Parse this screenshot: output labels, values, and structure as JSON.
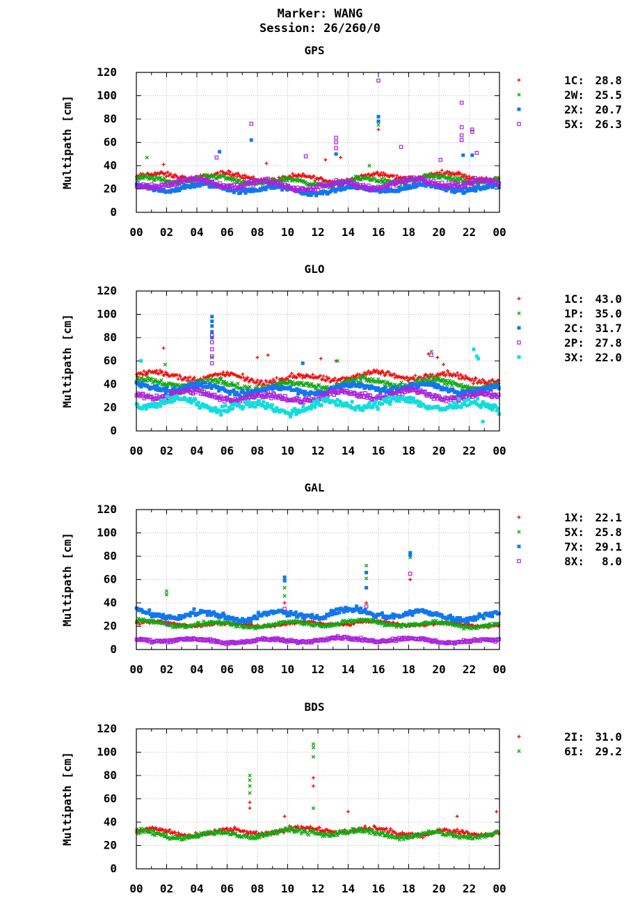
{
  "header": {
    "marker": "Marker: WANG",
    "session": "Session: 26/260/0"
  },
  "colors": {
    "red": "#ee1111",
    "green": "#11aa11",
    "blue": "#1177ee",
    "purple": "#aa22dd",
    "cyan": "#11dddd",
    "grid": "#aaaaaa"
  },
  "chart_data": [
    {
      "type": "scatter",
      "title": "GPS",
      "ylabel": "Multipath [cm]",
      "ylim": [
        0,
        120
      ],
      "yticks": [
        "0",
        "20",
        "40",
        "60",
        "80",
        "100",
        "120"
      ],
      "xlim": [
        0,
        24
      ],
      "xticks": [
        "00",
        "02",
        "04",
        "06",
        "08",
        "10",
        "12",
        "14",
        "16",
        "18",
        "20",
        "22",
        "00"
      ],
      "grid": true,
      "legend_position": "right",
      "series": [
        {
          "name": "1C",
          "stat": "28.8",
          "color": "#ee1111",
          "marker": "plus",
          "base": 30,
          "amp": 5,
          "outliers": [
            [
              16.0,
              71
            ],
            [
              12.5,
              45
            ],
            [
              8.6,
              42
            ],
            [
              13.5,
              47
            ],
            [
              1.8,
              41
            ]
          ]
        },
        {
          "name": "2W",
          "stat": "25.5",
          "color": "#11aa11",
          "marker": "cross",
          "base": 27,
          "amp": 5,
          "outliers": [
            [
              0.7,
              47
            ],
            [
              15.4,
              40
            ],
            [
              16.0,
              75
            ]
          ]
        },
        {
          "name": "2X",
          "stat": "20.7",
          "color": "#1177ee",
          "marker": "square",
          "base": 20,
          "amp": 5,
          "outliers": [
            [
              7.6,
              62
            ],
            [
              16.0,
              82
            ],
            [
              16.0,
              78
            ],
            [
              5.5,
              52
            ],
            [
              21.6,
              49
            ],
            [
              22.2,
              49
            ],
            [
              13.2,
              50
            ]
          ]
        },
        {
          "name": "5X",
          "stat": "26.3",
          "color": "#aa22dd",
          "marker": "osquare",
          "base": 24,
          "amp": 6,
          "outliers": [
            [
              7.6,
              76
            ],
            [
              16.0,
              113
            ],
            [
              21.5,
              94
            ],
            [
              21.5,
              73
            ],
            [
              21.5,
              66
            ],
            [
              21.5,
              62
            ],
            [
              22.2,
              71
            ],
            [
              22.2,
              69
            ],
            [
              13.2,
              64
            ],
            [
              13.2,
              60
            ],
            [
              13.2,
              55
            ],
            [
              17.5,
              56
            ],
            [
              11.2,
              48
            ],
            [
              20.1,
              45
            ],
            [
              22.5,
              51
            ],
            [
              5.3,
              47
            ]
          ]
        }
      ]
    },
    {
      "type": "scatter",
      "title": "GLO",
      "ylabel": "Multipath [cm]",
      "ylim": [
        0,
        120
      ],
      "yticks": [
        "0",
        "20",
        "40",
        "60",
        "80",
        "100",
        "120"
      ],
      "xlim": [
        0,
        24
      ],
      "xticks": [
        "00",
        "02",
        "04",
        "06",
        "08",
        "10",
        "12",
        "14",
        "16",
        "18",
        "20",
        "22",
        "00"
      ],
      "grid": true,
      "legend_position": "right",
      "series": [
        {
          "name": "1C",
          "stat": "43.0",
          "color": "#ee1111",
          "marker": "plus",
          "base": 46,
          "amp": 6,
          "outliers": [
            [
              1.8,
              71
            ],
            [
              8.0,
              63
            ],
            [
              8.7,
              65
            ],
            [
              19.3,
              66
            ],
            [
              19.9,
              63
            ],
            [
              13.2,
              60
            ],
            [
              12.2,
              62
            ],
            [
              20.3,
              57
            ]
          ]
        },
        {
          "name": "1P",
          "stat": "35.0",
          "color": "#11aa11",
          "marker": "cross",
          "base": 40,
          "amp": 6,
          "outliers": [
            [
              19.5,
              68
            ],
            [
              13.3,
              60
            ],
            [
              1.9,
              57
            ],
            [
              5.0,
              63
            ]
          ]
        },
        {
          "name": "2C",
          "stat": "31.7",
          "color": "#1177ee",
          "marker": "square",
          "base": 36,
          "amp": 6,
          "outliers": [
            [
              5.0,
              98
            ],
            [
              5.0,
              94
            ],
            [
              5.0,
              90
            ],
            [
              5.0,
              85
            ],
            [
              5.0,
              80
            ],
            [
              11.0,
              58
            ]
          ]
        },
        {
          "name": "2P",
          "stat": "27.8",
          "color": "#aa22dd",
          "marker": "osquare",
          "base": 30,
          "amp": 6,
          "outliers": [
            [
              5.0,
              82
            ],
            [
              5.0,
              76
            ],
            [
              5.0,
              70
            ],
            [
              5.0,
              64
            ],
            [
              5.0,
              58
            ],
            [
              19.5,
              65
            ]
          ]
        },
        {
          "name": "3X",
          "stat": "22.0",
          "color": "#11dddd",
          "marker": "square",
          "base": 22,
          "amp": 8,
          "outliers": [
            [
              22.3,
              70
            ],
            [
              22.5,
              64
            ],
            [
              22.6,
              62
            ],
            [
              0.3,
              60
            ],
            [
              22.9,
              8
            ]
          ]
        }
      ]
    },
    {
      "type": "scatter",
      "title": "GAL",
      "ylabel": "Multipath [cm]",
      "ylim": [
        0,
        120
      ],
      "yticks": [
        "0",
        "20",
        "40",
        "60",
        "80",
        "100",
        "120"
      ],
      "xlim": [
        0,
        24
      ],
      "xticks": [
        "00",
        "02",
        "04",
        "06",
        "08",
        "10",
        "12",
        "14",
        "16",
        "18",
        "20",
        "22",
        "00"
      ],
      "grid": true,
      "legend_position": "right",
      "series": [
        {
          "name": "1X",
          "stat": "22.1",
          "color": "#ee1111",
          "marker": "plus",
          "base": 22,
          "amp": 3,
          "outliers": [
            [
              18.1,
              60
            ],
            [
              9.8,
              40
            ],
            [
              15.2,
              40
            ]
          ]
        },
        {
          "name": "5X",
          "stat": "25.8",
          "color": "#11aa11",
          "marker": "cross",
          "base": 22,
          "amp": 4,
          "outliers": [
            [
              15.2,
              72
            ],
            [
              15.2,
              61
            ],
            [
              9.8,
              53
            ],
            [
              9.8,
              46
            ],
            [
              18.1,
              79
            ],
            [
              2.0,
              50
            ],
            [
              2.0,
              47
            ]
          ]
        },
        {
          "name": "7X",
          "stat": "29.1",
          "color": "#1177ee",
          "marker": "square",
          "base": 30,
          "amp": 6,
          "outliers": [
            [
              9.8,
              62
            ],
            [
              9.8,
              59
            ],
            [
              18.1,
              83
            ],
            [
              18.1,
              81
            ],
            [
              15.2,
              66
            ],
            [
              15.2,
              53
            ]
          ]
        },
        {
          "name": "8X",
          "stat": "8.0",
          "color": "#aa22dd",
          "marker": "osquare",
          "base": 8,
          "amp": 3,
          "outliers": [
            [
              18.1,
              65
            ],
            [
              15.2,
              37
            ],
            [
              9.8,
              35
            ],
            [
              2.0,
              22
            ]
          ]
        }
      ]
    },
    {
      "type": "scatter",
      "title": "BDS",
      "ylabel": "Multipath [cm]",
      "ylim": [
        0,
        120
      ],
      "yticks": [
        "0",
        "20",
        "40",
        "60",
        "80",
        "100",
        "120"
      ],
      "xlim": [
        0,
        24
      ],
      "xticks": [
        "00",
        "02",
        "04",
        "06",
        "08",
        "10",
        "12",
        "14",
        "16",
        "18",
        "20",
        "22",
        "00"
      ],
      "grid": true,
      "legend_position": "right",
      "series": [
        {
          "name": "2I",
          "stat": "31.0",
          "color": "#ee1111",
          "marker": "plus",
          "base": 32,
          "amp": 5,
          "outliers": [
            [
              11.7,
              78
            ],
            [
              11.7,
              71
            ],
            [
              7.5,
              57
            ],
            [
              7.5,
              52
            ],
            [
              23.8,
              49
            ],
            [
              9.8,
              45
            ],
            [
              14.0,
              49
            ],
            [
              21.2,
              45
            ]
          ]
        },
        {
          "name": "6I",
          "stat": "29.2",
          "color": "#11aa11",
          "marker": "cross",
          "base": 30,
          "amp": 5,
          "outliers": [
            [
              7.5,
              80
            ],
            [
              7.5,
              76
            ],
            [
              7.5,
              71
            ],
            [
              7.5,
              65
            ],
            [
              11.7,
              107
            ],
            [
              11.7,
              104
            ],
            [
              11.7,
              96
            ],
            [
              11.7,
              52
            ]
          ]
        }
      ]
    }
  ]
}
